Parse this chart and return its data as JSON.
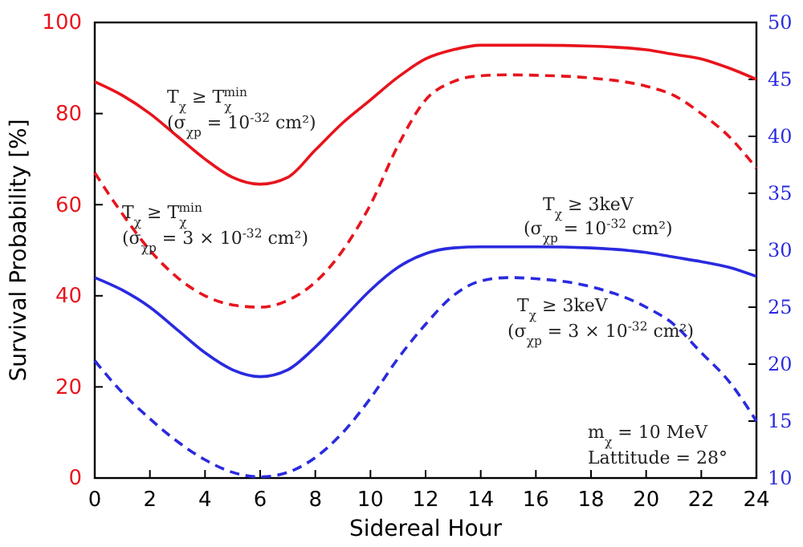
{
  "chart_data": {
    "type": "line",
    "xlabel": "Sidereal Hour",
    "ylabel": "Survival Probability [%]",
    "xlim": [
      0,
      24
    ],
    "xticks": [
      0,
      2,
      4,
      6,
      8,
      10,
      12,
      14,
      16,
      18,
      20,
      22,
      24
    ],
    "ylim": [
      0,
      100
    ],
    "yticks": [
      0,
      20,
      40,
      60,
      80,
      100
    ],
    "y2lim": [
      10,
      50
    ],
    "y2ticks": [
      10,
      15,
      20,
      25,
      30,
      35,
      40,
      45,
      50
    ],
    "x": [
      0,
      1,
      2,
      3,
      4,
      5,
      6,
      7,
      8,
      9,
      10,
      11,
      12,
      13,
      14,
      15,
      16,
      18,
      20,
      21,
      22,
      23,
      24
    ],
    "series": [
      {
        "color": "#e8141c",
        "line_style": "solid",
        "values": [
          87,
          84,
          80,
          75,
          70,
          66,
          64.5,
          66,
          72,
          78,
          83,
          88,
          92,
          94,
          95,
          95,
          95,
          94.8,
          94,
          93,
          92,
          90,
          87.5
        ]
      },
      {
        "color": "#e8141c",
        "line_style": "dashed",
        "values": [
          67,
          58,
          50,
          44,
          40,
          38,
          37.5,
          39,
          43,
          50,
          60,
          73,
          83,
          87,
          88.3,
          88.5,
          88.4,
          87.8,
          86,
          84,
          80,
          75,
          68
        ]
      },
      {
        "color": "#2a2ae0",
        "line_style": "solid",
        "axis": "y2",
        "values": [
          27.6,
          26.5,
          25,
          23,
          21,
          19.5,
          18.9,
          19.5,
          21.5,
          24,
          26.5,
          28.5,
          29.7,
          30.2,
          30.3,
          30.3,
          30.3,
          30.2,
          29.8,
          29.4,
          29,
          28.5,
          27.7
        ]
      },
      {
        "color": "#2a2ae0",
        "line_style": "dashed",
        "axis": "y2",
        "values": [
          20.3,
          17.5,
          15.2,
          13.2,
          11.6,
          10.5,
          10.1,
          10.5,
          11.8,
          14,
          17,
          20.5,
          23.5,
          26,
          27.3,
          27.6,
          27.5,
          26.8,
          25,
          23.5,
          21,
          18.5,
          15
        ]
      }
    ],
    "annotations": [
      "T$_{χ}$ ≥ T$_{χ}$$^{min}$",
      "(σ$_{χp}$ = 10$^{-32}$ cm²)",
      "T$_{χ}$ ≥ T$_{χ}$$^{min}$",
      "(σ$_{χp}$ = 3 × 10$^{-32}$ cm²)",
      "T$_{χ}$ ≥ 3keV",
      "(σ$_{χp}$ = 10$^{-32}$ cm²)",
      "T$_{χ}$ ≥ 3keV",
      "(σ$_{χp}$ = 3 × 10$^{-32}$ cm²)",
      "m$_{χ}$ = 10 MeV",
      "Lattitude = 28°"
    ],
    "grid": false,
    "marker": "none"
  }
}
